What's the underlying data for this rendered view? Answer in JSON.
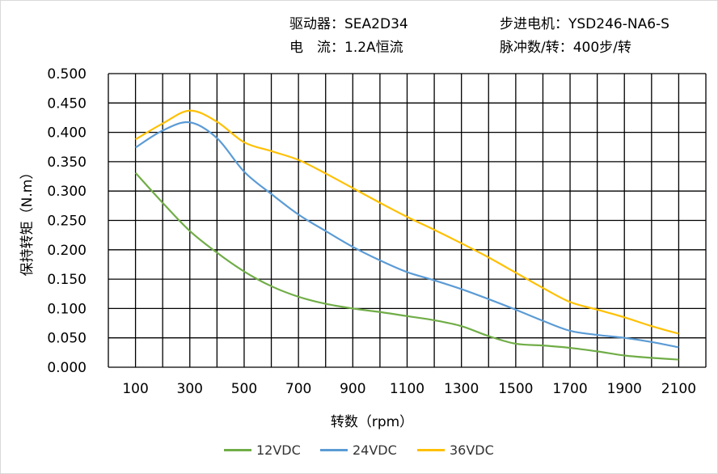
{
  "info": {
    "driver": "驱动器：SEA2D34",
    "current": "电　流：1.2A恒流",
    "motor": "步进电机：YSD246-NA6-S",
    "pulses": "脉冲数/转：400步/转"
  },
  "chart_data": {
    "type": "line",
    "xlabel": "转数（rpm）",
    "ylabel": "保持转矩（N.m）",
    "xlim": [
      0,
      2200
    ],
    "ylim": [
      0,
      0.5
    ],
    "xticks": [
      "100",
      "300",
      "500",
      "700",
      "900",
      "1100",
      "1300",
      "1500",
      "1700",
      "1900",
      "2100"
    ],
    "yticks": [
      "0.000",
      "0.050",
      "0.100",
      "0.150",
      "0.200",
      "0.250",
      "0.300",
      "0.350",
      "0.400",
      "0.450",
      "0.500"
    ],
    "grid": true,
    "legend": "bottom",
    "x": [
      100,
      200,
      300,
      400,
      500,
      600,
      700,
      800,
      900,
      1000,
      1100,
      1200,
      1300,
      1400,
      1500,
      1600,
      1700,
      1800,
      1900,
      2000,
      2100
    ],
    "series": [
      {
        "name": "12VDC",
        "color": "#70ad47",
        "values": [
          0.331,
          0.28,
          0.232,
          0.195,
          0.163,
          0.138,
          0.12,
          0.108,
          0.1,
          0.094,
          0.087,
          0.08,
          0.07,
          0.053,
          0.04,
          0.037,
          0.033,
          0.027,
          0.02,
          0.016,
          0.013
        ]
      },
      {
        "name": "24VDC",
        "color": "#5b9bd5",
        "values": [
          0.374,
          0.403,
          0.417,
          0.39,
          0.333,
          0.295,
          0.26,
          0.232,
          0.205,
          0.182,
          0.162,
          0.148,
          0.133,
          0.116,
          0.098,
          0.079,
          0.062,
          0.055,
          0.05,
          0.043,
          0.034
        ]
      },
      {
        "name": "36VDC",
        "color": "#ffc000",
        "values": [
          0.388,
          0.415,
          0.437,
          0.418,
          0.383,
          0.368,
          0.353,
          0.33,
          0.305,
          0.28,
          0.256,
          0.234,
          0.211,
          0.187,
          0.161,
          0.135,
          0.111,
          0.098,
          0.085,
          0.07,
          0.057
        ]
      }
    ]
  }
}
